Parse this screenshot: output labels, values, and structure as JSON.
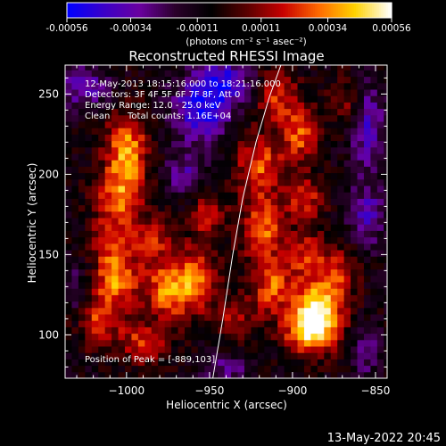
{
  "colorbar": {
    "tick_labels": [
      "-0.00056",
      "-0.00034",
      "-0.00011",
      "0.00011",
      "0.00034",
      "0.00056"
    ],
    "tick_values": [
      -0.00056,
      -0.00034,
      -0.00011,
      0.00011,
      0.00034,
      0.00056
    ],
    "unit_label": "(photons cm⁻² s⁻¹ asec⁻²)",
    "range": [
      -0.00056,
      0.00056
    ],
    "colormap_stops": [
      "#0000ff",
      "#3a00c8",
      "#6a00a0",
      "#2a002a",
      "#000000",
      "#5a0000",
      "#c80000",
      "#ff6a00",
      "#ffd200",
      "#ffffff"
    ]
  },
  "chart_data": {
    "type": "heatmap",
    "title": "Reconstructed RHESSI Image",
    "xlabel": "Heliocentric X (arcsec)",
    "ylabel": "Heliocentric Y (arcsec)",
    "xlim": [
      -1037,
      -843
    ],
    "ylim": [
      73,
      268
    ],
    "x_ticks": [
      -1000,
      -950,
      -900,
      -850
    ],
    "x_tick_labels": [
      "−1000",
      "−950",
      "−900",
      "−850"
    ],
    "y_ticks": [
      100,
      150,
      200,
      250
    ],
    "y_tick_labels": [
      "100",
      "150",
      "200",
      "250"
    ],
    "pixel_size_arcsec": 4,
    "limb_curve": [
      {
        "x": -948,
        "y": 73
      },
      {
        "x": -942,
        "y": 110
      },
      {
        "x": -936,
        "y": 150
      },
      {
        "x": -930,
        "y": 185
      },
      {
        "x": -922,
        "y": 220
      },
      {
        "x": -914,
        "y": 248
      },
      {
        "x": -907,
        "y": 268
      }
    ],
    "hotspots": [
      {
        "x": -1000,
        "y": 215,
        "amp": 0.00046,
        "sx": 9,
        "sy": 16
      },
      {
        "x": -1005,
        "y": 185,
        "amp": 0.00036,
        "sx": 10,
        "sy": 12
      },
      {
        "x": -1010,
        "y": 158,
        "amp": 0.0003,
        "sx": 9,
        "sy": 9
      },
      {
        "x": -1005,
        "y": 135,
        "amp": 0.00042,
        "sx": 10,
        "sy": 11
      },
      {
        "x": -1020,
        "y": 110,
        "amp": 0.00034,
        "sx": 12,
        "sy": 12
      },
      {
        "x": -990,
        "y": 95,
        "amp": 0.0003,
        "sx": 10,
        "sy": 9
      },
      {
        "x": -975,
        "y": 128,
        "amp": 0.0004,
        "sx": 9,
        "sy": 13
      },
      {
        "x": -985,
        "y": 160,
        "amp": 0.00028,
        "sx": 8,
        "sy": 10
      },
      {
        "x": -958,
        "y": 135,
        "amp": 0.00038,
        "sx": 9,
        "sy": 14
      },
      {
        "x": -952,
        "y": 175,
        "amp": 0.00026,
        "sx": 8,
        "sy": 10
      },
      {
        "x": -935,
        "y": 110,
        "amp": 0.00022,
        "sx": 9,
        "sy": 9
      },
      {
        "x": -920,
        "y": 205,
        "amp": 0.00036,
        "sx": 10,
        "sy": 14
      },
      {
        "x": -918,
        "y": 165,
        "amp": 0.00038,
        "sx": 9,
        "sy": 13
      },
      {
        "x": -912,
        "y": 130,
        "amp": 0.00036,
        "sx": 9,
        "sy": 12
      },
      {
        "x": -910,
        "y": 250,
        "amp": 0.0003,
        "sx": 9,
        "sy": 12
      },
      {
        "x": -895,
        "y": 225,
        "amp": 0.00036,
        "sx": 8,
        "sy": 12
      },
      {
        "x": -893,
        "y": 185,
        "amp": 0.0003,
        "sx": 8,
        "sy": 10
      },
      {
        "x": -889,
        "y": 103,
        "amp": 0.00056,
        "sx": 11,
        "sy": 10
      },
      {
        "x": -884,
        "y": 120,
        "amp": 0.00048,
        "sx": 10,
        "sy": 12
      },
      {
        "x": -890,
        "y": 150,
        "amp": 0.0003,
        "sx": 9,
        "sy": 10
      },
      {
        "x": -870,
        "y": 140,
        "amp": 0.00024,
        "sx": 7,
        "sy": 10
      },
      {
        "x": -868,
        "y": 245,
        "amp": 0.0002,
        "sx": 7,
        "sy": 10
      }
    ],
    "cold_regions": [
      {
        "x": -955,
        "y": 240,
        "amp": -0.0004,
        "sx": 12,
        "sy": 14
      },
      {
        "x": -940,
        "y": 258,
        "amp": -0.00036,
        "sx": 12,
        "sy": 10
      },
      {
        "x": -1025,
        "y": 255,
        "amp": -0.00028,
        "sx": 10,
        "sy": 10
      },
      {
        "x": -965,
        "y": 200,
        "amp": -0.00024,
        "sx": 8,
        "sy": 10
      },
      {
        "x": -855,
        "y": 230,
        "amp": -0.00032,
        "sx": 7,
        "sy": 18
      },
      {
        "x": -855,
        "y": 175,
        "amp": -0.0003,
        "sx": 7,
        "sy": 14
      },
      {
        "x": -1030,
        "y": 120,
        "amp": -0.00024,
        "sx": 6,
        "sy": 16
      },
      {
        "x": -940,
        "y": 80,
        "amp": -0.00022,
        "sx": 10,
        "sy": 6
      },
      {
        "x": -855,
        "y": 90,
        "amp": -0.00022,
        "sx": 6,
        "sy": 10
      }
    ],
    "background_level": -8e-05,
    "noise_amp": 9e-05
  },
  "annotations": {
    "time_range": "12-May-2013 18:15:16.000 to 18:21:16.000",
    "detectors": "Detectors: 3F 4F 5F 6F 7F 8F, Att 0",
    "energy": "Energy Range: 12.0 - 25.0 keV",
    "clean_label": "Clean",
    "total_counts": "Total counts: 1.16E+04",
    "peak": "Position of Peak = [-889,103]"
  },
  "footer": {
    "timestamp": "13-May-2022 20:45"
  }
}
